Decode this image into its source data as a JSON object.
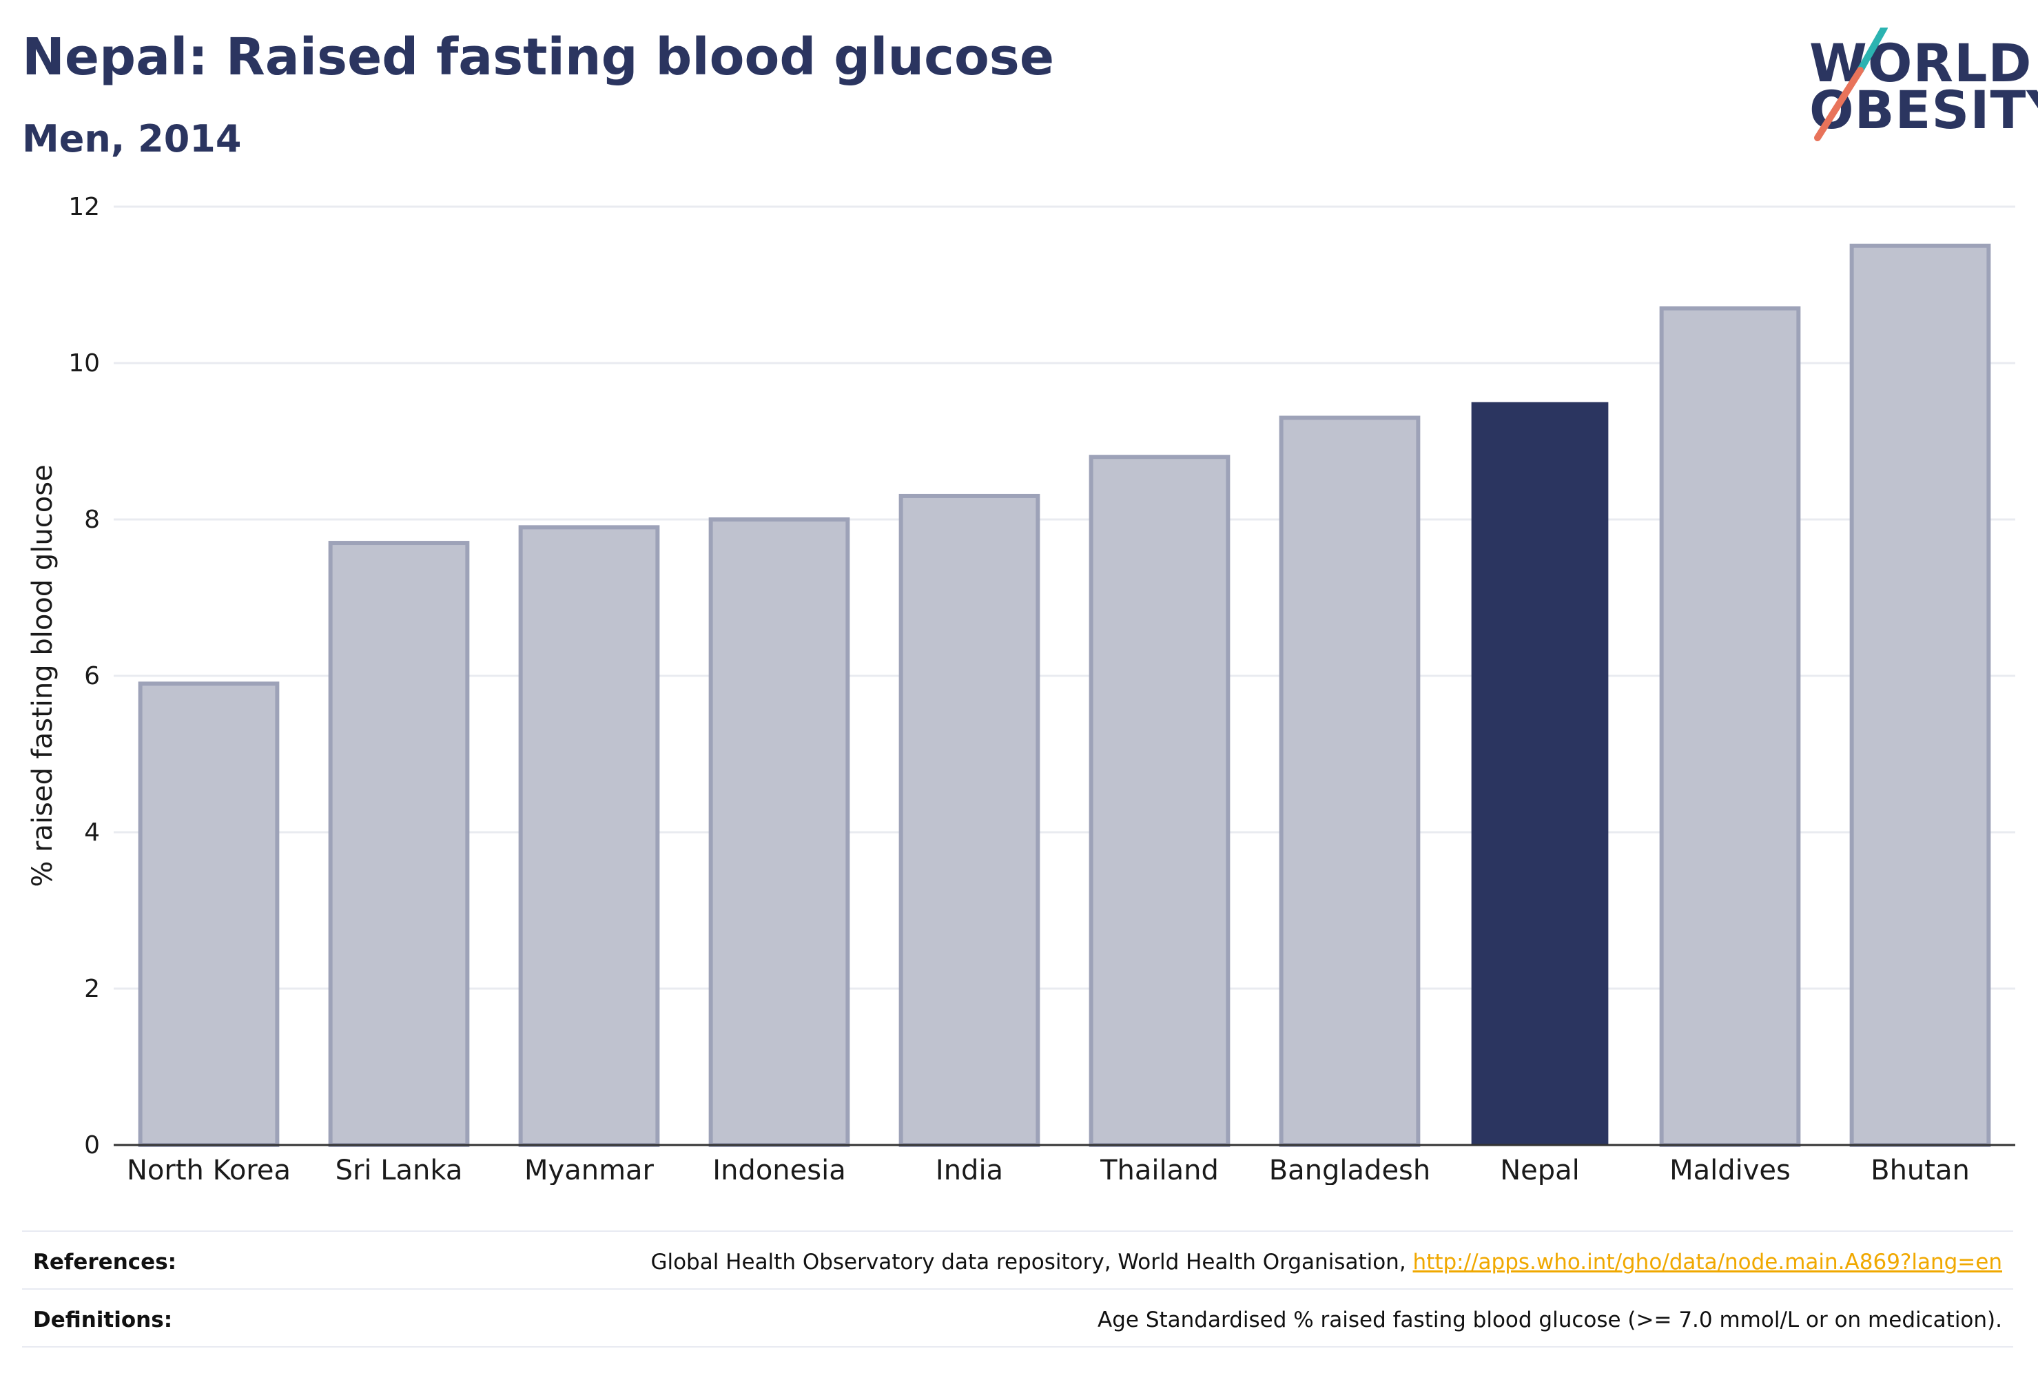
{
  "header": {
    "title": "Nepal: Raised fasting blood glucose",
    "subtitle": "Men, 2014"
  },
  "logo": {
    "line1": "WORLD",
    "line2": "OBESITY",
    "accent_teal": "#2bb3b1",
    "accent_coral": "#e8735a"
  },
  "colors": {
    "bar_default": "#bfc2cf",
    "bar_border": "#9da2b8",
    "bar_highlight": "#2b3560",
    "grid": "#e9ebf0",
    "axis": "#333333"
  },
  "chart_data": {
    "type": "bar",
    "categories": [
      "North Korea",
      "Sri Lanka",
      "Myanmar",
      "Indonesia",
      "India",
      "Thailand",
      "Bangladesh",
      "Nepal",
      "Maldives",
      "Bhutan"
    ],
    "values": [
      5.9,
      7.7,
      7.9,
      8.0,
      8.3,
      8.8,
      9.3,
      9.5,
      10.7,
      11.5
    ],
    "highlight": "Nepal",
    "ylabel": "% raised fasting blood glucose",
    "ylim": [
      0,
      12
    ],
    "yticks": [
      "0",
      "2",
      "4",
      "6",
      "8",
      "10",
      "12"
    ],
    "grid": true
  },
  "footer": {
    "references_label": "References:",
    "references_text": "Global Health Observatory data repository, World Health Organisation, ",
    "references_link": "http://apps.who.int/gho/data/node.main.A869?lang=en",
    "definitions_label": "Definitions:",
    "definitions_text": "Age Standardised % raised fasting blood glucose (>= 7.0 mmol/L or on medication)."
  }
}
